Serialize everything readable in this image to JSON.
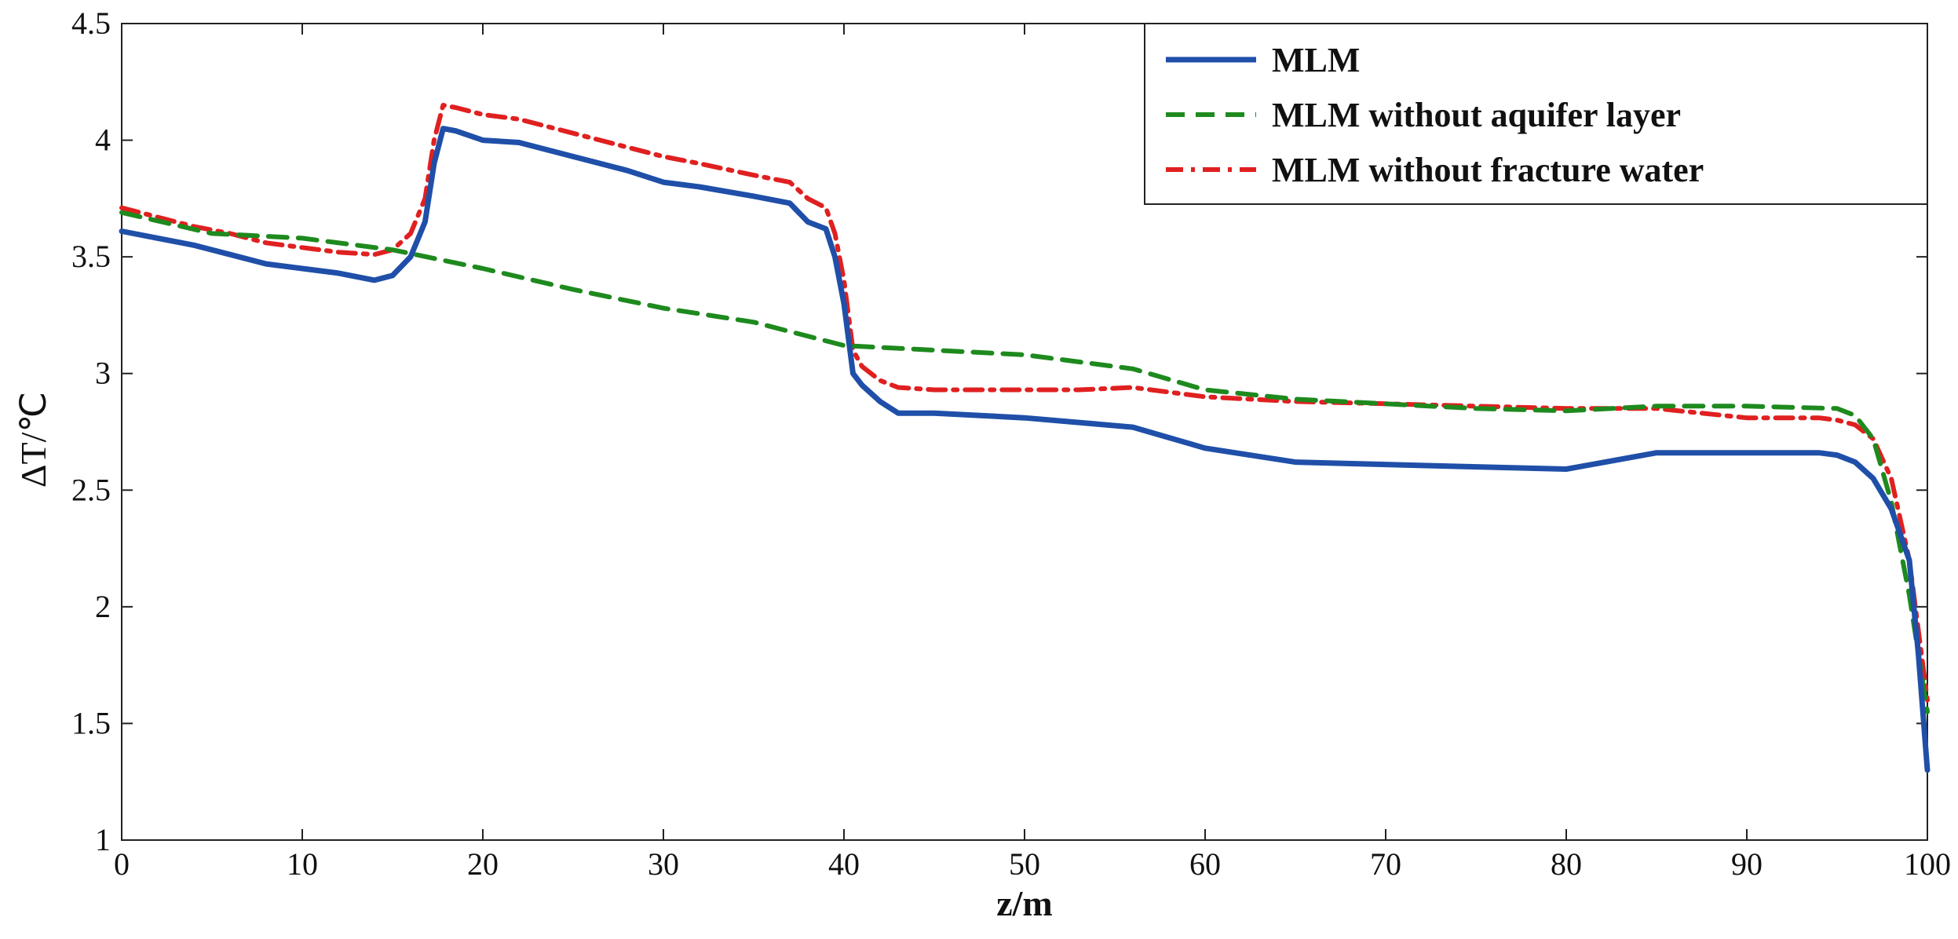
{
  "chart_data": {
    "type": "line",
    "title": "",
    "xlabel": "z/m",
    "ylabel": "ΔT/℃",
    "xlim": [
      0,
      100
    ],
    "ylim": [
      1,
      4.5
    ],
    "xticks": [
      0,
      10,
      20,
      30,
      40,
      50,
      60,
      70,
      80,
      90,
      100
    ],
    "yticks": [
      1,
      1.5,
      2,
      2.5,
      3,
      3.5,
      4,
      4.5
    ],
    "xtick_labels": [
      "0",
      "10",
      "20",
      "30",
      "40",
      "50",
      "60",
      "70",
      "80",
      "90",
      "100"
    ],
    "ytick_labels": [
      "1",
      "1.5",
      "2",
      "2.5",
      "3",
      "3.5",
      "4",
      "4.5"
    ],
    "grid": false,
    "legend_position": "top-right",
    "series": [
      {
        "name": "MLM",
        "color": "#1f4fa8",
        "style": "solid",
        "x": [
          0,
          2,
          4,
          6,
          8,
          10,
          12,
          14,
          15,
          16,
          16.8,
          17.3,
          17.8,
          18.5,
          20,
          22,
          25,
          28,
          30,
          32,
          35,
          37,
          38,
          39,
          39.5,
          40,
          40.5,
          41,
          42,
          43,
          45,
          50,
          53,
          56,
          60,
          65,
          70,
          75,
          80,
          85,
          90,
          94,
          95,
          96,
          97,
          98,
          99,
          99.5,
          100
        ],
        "y": [
          3.61,
          3.58,
          3.55,
          3.51,
          3.47,
          3.45,
          3.43,
          3.4,
          3.42,
          3.5,
          3.65,
          3.9,
          4.05,
          4.04,
          4.0,
          3.99,
          3.93,
          3.87,
          3.82,
          3.8,
          3.76,
          3.73,
          3.65,
          3.62,
          3.5,
          3.3,
          3.0,
          2.95,
          2.88,
          2.83,
          2.83,
          2.81,
          2.79,
          2.77,
          2.68,
          2.62,
          2.61,
          2.6,
          2.59,
          2.66,
          2.66,
          2.66,
          2.65,
          2.62,
          2.55,
          2.42,
          2.2,
          1.8,
          1.3
        ]
      },
      {
        "name": "MLM without aquifer layer",
        "color": "#1e8a1e",
        "style": "dashed",
        "x": [
          0,
          5,
          10,
          15,
          20,
          25,
          30,
          35,
          40,
          45,
          50,
          56,
          60,
          65,
          70,
          75,
          80,
          85,
          90,
          95,
          96,
          97,
          98,
          99,
          100
        ],
        "y": [
          3.69,
          3.6,
          3.58,
          3.53,
          3.45,
          3.36,
          3.28,
          3.22,
          3.12,
          3.1,
          3.08,
          3.02,
          2.93,
          2.89,
          2.87,
          2.85,
          2.84,
          2.86,
          2.86,
          2.85,
          2.82,
          2.72,
          2.45,
          2.05,
          1.55
        ]
      },
      {
        "name": "MLM without fracture water",
        "color": "#e02020",
        "style": "dashdot",
        "x": [
          0,
          2,
          4,
          6,
          8,
          10,
          12,
          14,
          15,
          16,
          16.8,
          17.3,
          17.8,
          18.5,
          20,
          22,
          25,
          28,
          30,
          32,
          35,
          37,
          38,
          39,
          39.5,
          40,
          40.5,
          41,
          42,
          43,
          45,
          50,
          53,
          56,
          60,
          65,
          70,
          75,
          80,
          85,
          90,
          94,
          95,
          96,
          97,
          98,
          99,
          99.5,
          100
        ],
        "y": [
          3.71,
          3.67,
          3.63,
          3.6,
          3.56,
          3.54,
          3.52,
          3.51,
          3.53,
          3.6,
          3.75,
          4.0,
          4.15,
          4.14,
          4.11,
          4.09,
          4.03,
          3.97,
          3.93,
          3.9,
          3.85,
          3.82,
          3.75,
          3.71,
          3.6,
          3.4,
          3.1,
          3.03,
          2.97,
          2.94,
          2.93,
          2.93,
          2.93,
          2.94,
          2.9,
          2.88,
          2.87,
          2.86,
          2.85,
          2.85,
          2.81,
          2.81,
          2.8,
          2.78,
          2.72,
          2.55,
          2.2,
          1.9,
          1.6
        ]
      }
    ]
  }
}
